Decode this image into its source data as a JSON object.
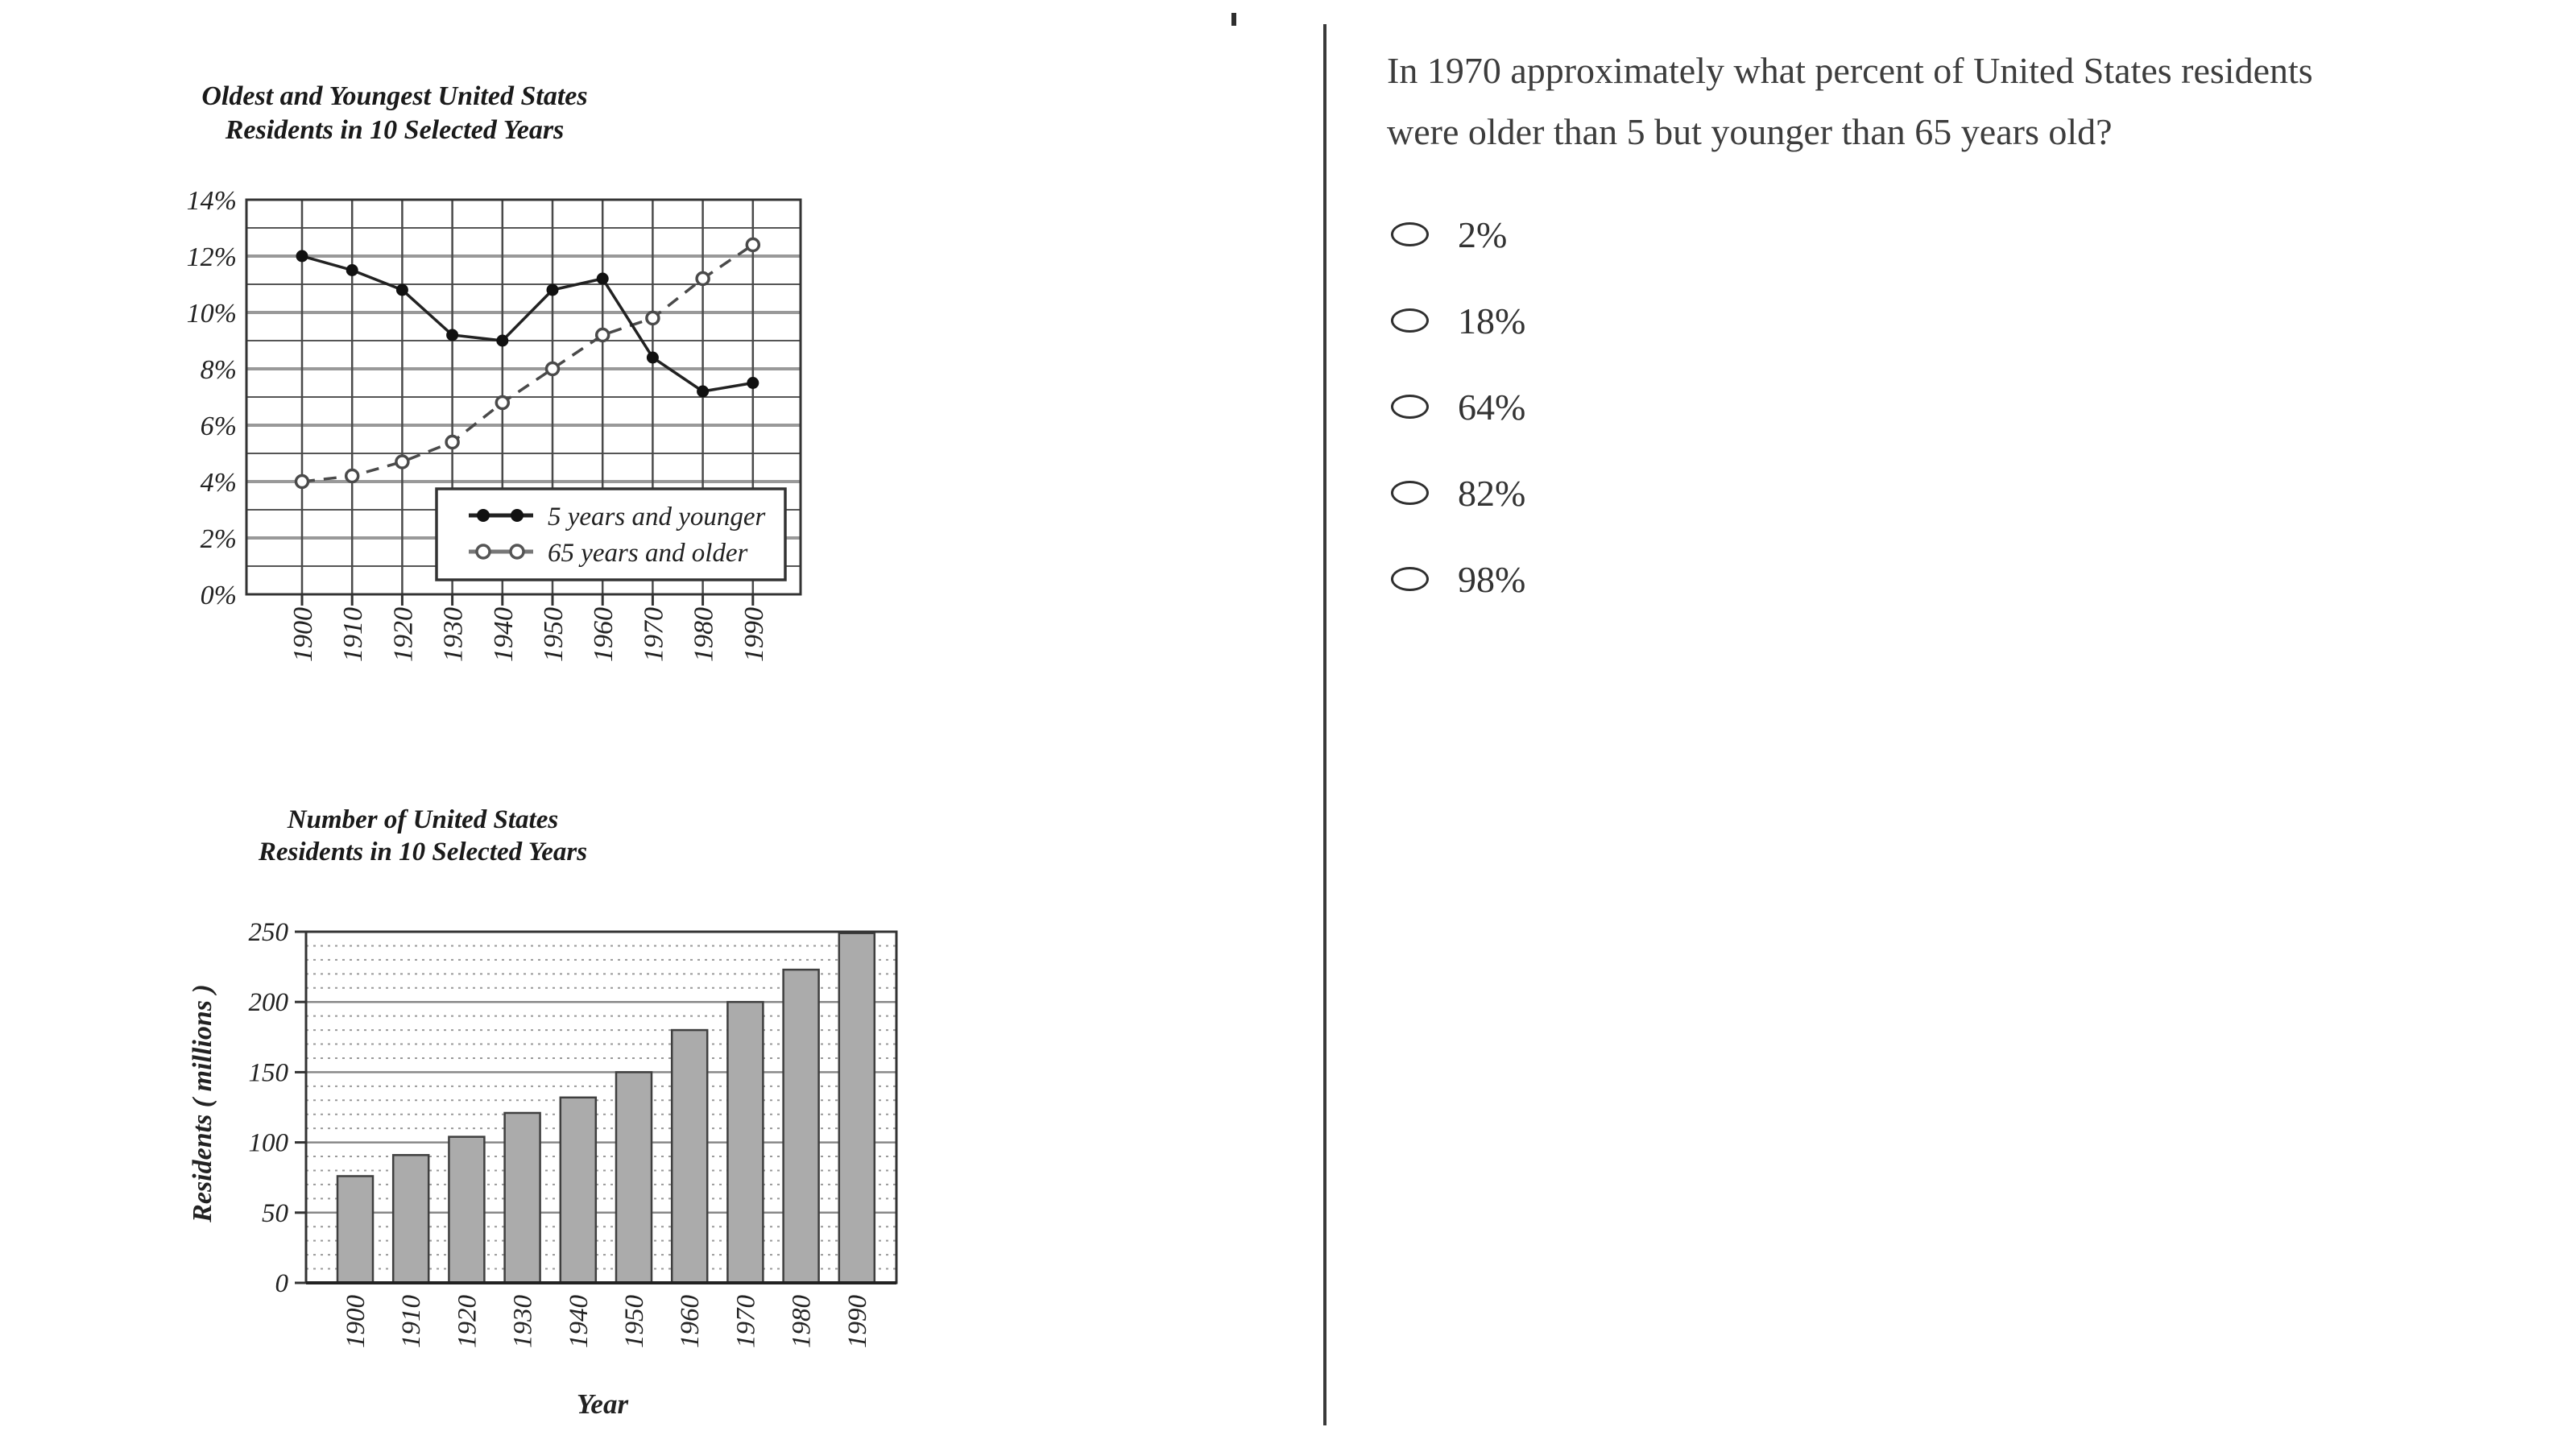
{
  "page": {
    "layout_note": "test question with two statistical charts and multiple-choice answers"
  },
  "chart_data": [
    {
      "type": "line",
      "title": "Oldest and Youngest United States Residents in 10 Selected Years",
      "title_lines": [
        "Oldest and Youngest United States",
        "Residents in 10 Selected Years"
      ],
      "categories": [
        "1900",
        "1910",
        "1920",
        "1930",
        "1940",
        "1950",
        "1960",
        "1970",
        "1980",
        "1990"
      ],
      "series": [
        {
          "name": "5 years and younger",
          "marker": "filled-circle",
          "line_style": "solid",
          "values": [
            12.0,
            11.5,
            10.8,
            9.2,
            9.0,
            10.8,
            11.2,
            8.4,
            7.2,
            7.5
          ]
        },
        {
          "name": "65 years and older",
          "marker": "open-circle",
          "line_style": "dashed",
          "values": [
            4.0,
            4.2,
            4.7,
            5.4,
            6.8,
            8.0,
            9.2,
            9.8,
            11.2,
            12.4
          ]
        }
      ],
      "ylim": [
        0,
        14
      ],
      "ytick_step": 2,
      "ytick_labels": [
        "0%",
        "2%",
        "4%",
        "6%",
        "8%",
        "10%",
        "12%",
        "14%"
      ],
      "grid": "horizontal minor every 1%, major every 2%, vertical line at each year",
      "legend_position": "inside-bottom-right",
      "legend_entries": [
        "5 years and younger",
        "65 years and older"
      ]
    },
    {
      "type": "bar",
      "title": "Number of United States Residents in 10 Selected Years",
      "title_lines": [
        "Number of United States",
        "Residents in 10 Selected Years"
      ],
      "categories": [
        "1900",
        "1910",
        "1920",
        "1930",
        "1940",
        "1950",
        "1960",
        "1970",
        "1980",
        "1990"
      ],
      "values": [
        76,
        91,
        104,
        121,
        132,
        150,
        180,
        200,
        223,
        249
      ],
      "xlabel": "Year",
      "ylabel": "Residents ( millions )",
      "ylim": [
        0,
        250
      ],
      "ytick_step": 50,
      "ytick_labels": [
        "0",
        "50",
        "100",
        "150",
        "200",
        "250"
      ],
      "grid": "dotted horizontal every 10, solid every 50"
    }
  ],
  "question_panel": {
    "question": "In 1970 approximately what percent of United States residents were older than 5 but younger than 65 years old?",
    "question_lines": [
      "In 1970 approximately what percent of United States residents",
      "were older than 5 but younger than 65 years old?"
    ],
    "options": [
      {
        "label": "2%"
      },
      {
        "label": "18%"
      },
      {
        "label": "64%"
      },
      {
        "label": "82%"
      },
      {
        "label": "98%"
      }
    ]
  },
  "colors": {
    "line_dark": "#222222",
    "line_dashed": "#4a4a4a",
    "grid_major": "#999999",
    "grid_minor": "#555555",
    "bar_fill": "#ababab",
    "bar_stroke": "#3f3f3f",
    "divider": "#3a3a3a",
    "text": "#3d3d3d"
  }
}
